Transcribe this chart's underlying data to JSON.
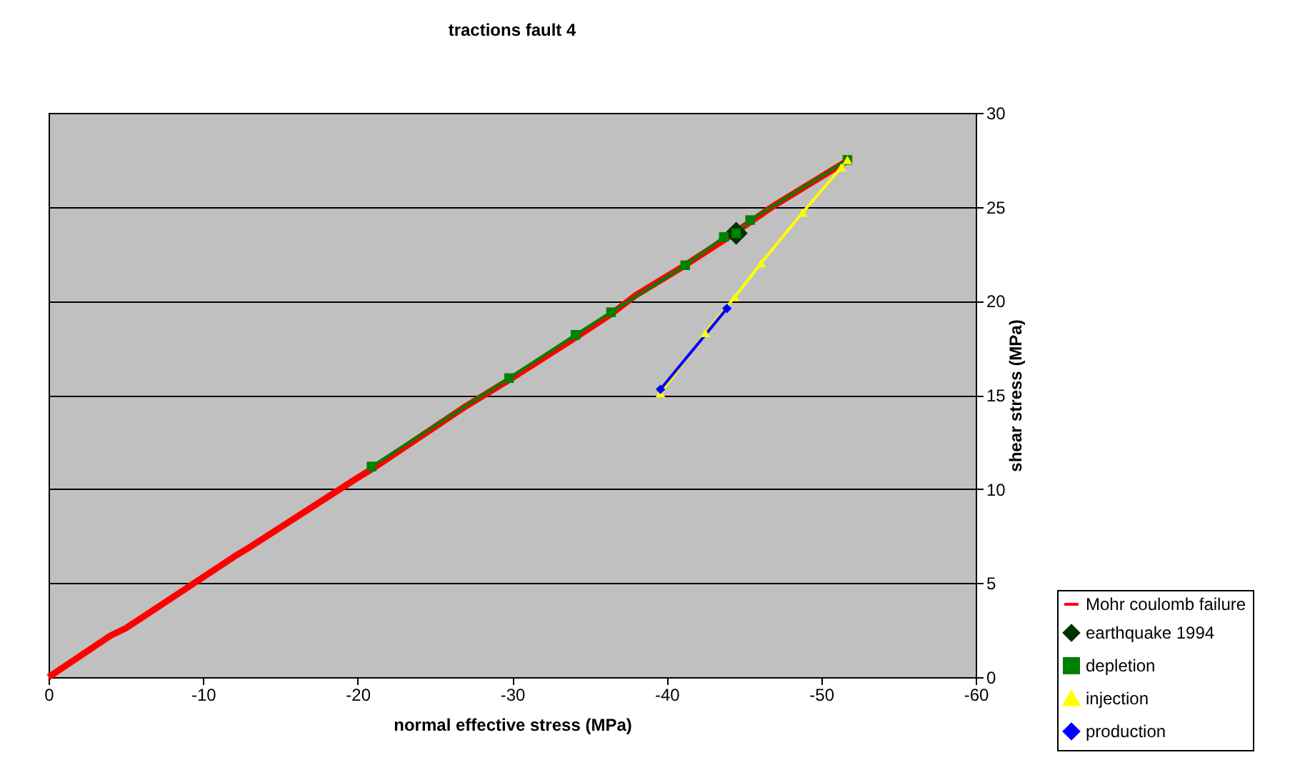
{
  "chart_data": {
    "type": "line",
    "title": "tractions fault 4",
    "xlabel": "normal effective stress (MPa)",
    "ylabel": "shear stress (MPa)",
    "xlim": [
      0,
      -60
    ],
    "xticks": [
      0,
      -10,
      -20,
      -30,
      -40,
      -50,
      -60
    ],
    "ylim": [
      0,
      30
    ],
    "yticks": [
      0,
      5,
      10,
      15,
      20,
      25,
      30
    ],
    "grid": "y",
    "legend": "bottom right",
    "series": [
      {
        "name": "Mohr coulomb failure",
        "color": "#ff0000",
        "marker": "none",
        "x": [
          0,
          -4,
          -5,
          -12,
          -13,
          -20,
          -21,
          -27,
          -29.8,
          -34,
          -36.4,
          -38,
          -41,
          -44,
          -47,
          -51.6
        ],
        "values": [
          0,
          2.2,
          2.6,
          6.4,
          6.9,
          10.6,
          11.1,
          14.4,
          15.8,
          18,
          19.3,
          20.3,
          21.8,
          23.4,
          25.1,
          27.4
        ]
      },
      {
        "name": "earthquake 1994",
        "type": "scatter",
        "color": "#003300",
        "marker": "diamond",
        "x": [
          -44.5
        ],
        "values": [
          23.6
        ]
      },
      {
        "name": "depletion",
        "color": "#008000",
        "marker": "square",
        "x": [
          -20.9,
          -29.8,
          -34.1,
          -36.4,
          -41.2,
          -43.7,
          -44.5,
          -45.4,
          -51.7
        ],
        "values": [
          11.2,
          15.9,
          18.2,
          19.4,
          21.9,
          23.4,
          23.6,
          24.3,
          27.5
        ]
      },
      {
        "name": "injection",
        "color": "#ffff00",
        "marker": "triangle",
        "x": [
          -51.7,
          -51.3,
          -48.8,
          -46.1,
          -44.4,
          -42.5,
          -39.6
        ],
        "values": [
          27.5,
          27.1,
          24.7,
          22.0,
          20.2,
          18.3,
          15.1
        ]
      },
      {
        "name": "production",
        "color": "#0000ff",
        "marker": "diamond",
        "x": [
          -39.6,
          -43.9
        ],
        "values": [
          15.3,
          19.6
        ]
      }
    ]
  }
}
